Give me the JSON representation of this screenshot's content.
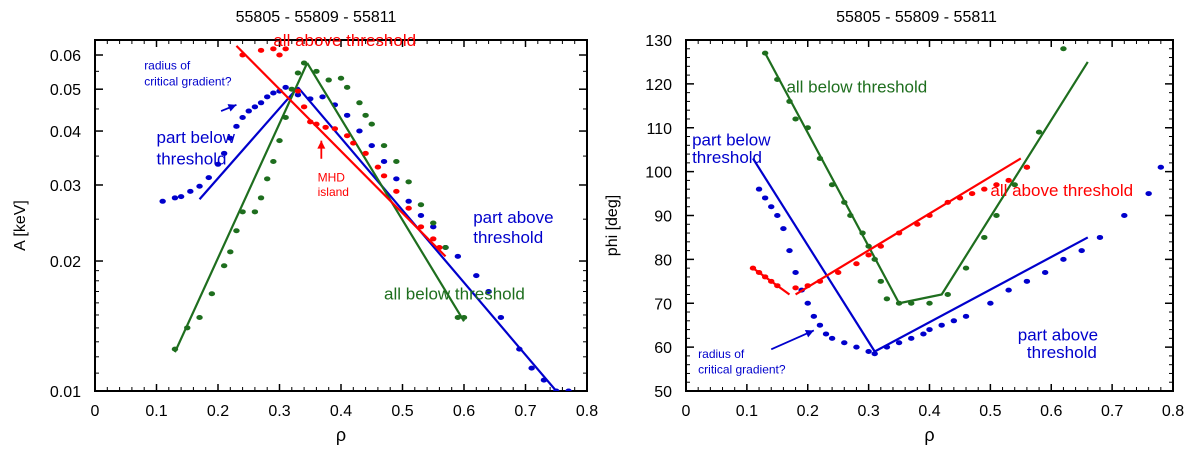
{
  "chart_data": [
    {
      "type": "scatter",
      "title": "55805 - 55809 - 55811",
      "xlabel": "ρ",
      "ylabel": "A [keV]",
      "xlim": [
        0,
        0.8
      ],
      "ylim": [
        0.01,
        0.065
      ],
      "y_scale": "log",
      "grid": false,
      "x_ticks": [
        "0",
        "0.1",
        "0.2",
        "0.3",
        "0.4",
        "0.5",
        "0.6",
        "0.7",
        "0.8"
      ],
      "x_tick_values": [
        0,
        0.1,
        0.2,
        0.3,
        0.4,
        0.5,
        0.6,
        0.7,
        0.8
      ],
      "y_ticks": [
        "0.01",
        "0.02",
        "0.03",
        "0.04",
        "0.05",
        "0.06"
      ],
      "y_tick_values": [
        0.01,
        0.02,
        0.03,
        0.04,
        0.05,
        0.06
      ],
      "series": [
        {
          "color": "#0000cc",
          "points": [
            [
              0.11,
              0.0275
            ],
            [
              0.13,
              0.028
            ],
            [
              0.14,
              0.0282
            ],
            [
              0.155,
              0.029
            ],
            [
              0.17,
              0.0298
            ],
            [
              0.185,
              0.0312
            ],
            [
              0.2,
              0.0335
            ],
            [
              0.21,
              0.0355
            ],
            [
              0.22,
              0.0385
            ],
            [
              0.23,
              0.041
            ],
            [
              0.24,
              0.043
            ],
            [
              0.25,
              0.0445
            ],
            [
              0.26,
              0.0455
            ],
            [
              0.27,
              0.0465
            ],
            [
              0.28,
              0.048
            ],
            [
              0.29,
              0.049
            ],
            [
              0.3,
              0.0495
            ],
            [
              0.31,
              0.0505
            ],
            [
              0.33,
              0.0485
            ],
            [
              0.35,
              0.0475
            ],
            [
              0.37,
              0.048
            ],
            [
              0.39,
              0.046
            ],
            [
              0.41,
              0.0435
            ],
            [
              0.43,
              0.04
            ],
            [
              0.45,
              0.037
            ],
            [
              0.47,
              0.034
            ],
            [
              0.49,
              0.031
            ],
            [
              0.51,
              0.0275
            ],
            [
              0.53,
              0.0255
            ],
            [
              0.55,
              0.024
            ],
            [
              0.57,
              0.0215
            ],
            [
              0.59,
              0.0205
            ],
            [
              0.62,
              0.0185
            ],
            [
              0.64,
              0.017
            ],
            [
              0.66,
              0.0148
            ],
            [
              0.69,
              0.0125
            ],
            [
              0.71,
              0.0113
            ],
            [
              0.73,
              0.0106
            ],
            [
              0.75,
              0.01
            ],
            [
              0.77,
              0.01
            ]
          ],
          "fits": [
            [
              [
                0.17,
                0.0278
              ],
              [
                0.33,
                0.0505
              ]
            ],
            [
              [
                0.33,
                0.0505
              ],
              [
                0.75,
                0.01
              ]
            ]
          ]
        },
        {
          "color": "#1e6e1e",
          "points": [
            [
              0.13,
              0.0125
            ],
            [
              0.15,
              0.014
            ],
            [
              0.17,
              0.0148
            ],
            [
              0.19,
              0.0168
            ],
            [
              0.21,
              0.0195
            ],
            [
              0.22,
              0.021
            ],
            [
              0.23,
              0.0235
            ],
            [
              0.24,
              0.026
            ],
            [
              0.26,
              0.026
            ],
            [
              0.27,
              0.028
            ],
            [
              0.28,
              0.031
            ],
            [
              0.29,
              0.034
            ],
            [
              0.3,
              0.038
            ],
            [
              0.31,
              0.043
            ],
            [
              0.32,
              0.05
            ],
            [
              0.33,
              0.0545
            ],
            [
              0.34,
              0.0575
            ],
            [
              0.36,
              0.055
            ],
            [
              0.38,
              0.0525
            ],
            [
              0.4,
              0.053
            ],
            [
              0.41,
              0.0505
            ],
            [
              0.43,
              0.0465
            ],
            [
              0.44,
              0.0435
            ],
            [
              0.45,
              0.0415
            ],
            [
              0.47,
              0.037
            ],
            [
              0.49,
              0.034
            ],
            [
              0.51,
              0.0305
            ],
            [
              0.53,
              0.027
            ],
            [
              0.55,
              0.0245
            ],
            [
              0.57,
              0.0215
            ],
            [
              0.59,
              0.0148
            ],
            [
              0.6,
              0.0148
            ]
          ],
          "fits": [
            [
              [
                0.13,
                0.0123
              ],
              [
                0.345,
                0.0575
              ]
            ],
            [
              [
                0.345,
                0.0575
              ],
              [
                0.6,
                0.0145
              ]
            ]
          ]
        },
        {
          "color": "#ff0000",
          "points": [
            [
              0.24,
              0.06
            ],
            [
              0.27,
              0.0615
            ],
            [
              0.29,
              0.062
            ],
            [
              0.3,
              0.06
            ],
            [
              0.31,
              0.062
            ],
            [
              0.33,
              0.0495
            ],
            [
              0.34,
              0.0455
            ],
            [
              0.35,
              0.042
            ],
            [
              0.36,
              0.0415
            ],
            [
              0.375,
              0.0408
            ],
            [
              0.39,
              0.0405
            ],
            [
              0.41,
              0.039
            ],
            [
              0.42,
              0.0375
            ],
            [
              0.44,
              0.0355
            ],
            [
              0.46,
              0.033
            ],
            [
              0.47,
              0.0315
            ],
            [
              0.49,
              0.029
            ],
            [
              0.51,
              0.0265
            ],
            [
              0.53,
              0.024
            ],
            [
              0.55,
              0.0225
            ],
            [
              0.56,
              0.0215
            ]
          ],
          "fits": [
            [
              [
                0.23,
                0.063
              ],
              [
                0.57,
                0.0205
              ]
            ]
          ]
        }
      ],
      "annotations": [
        {
          "text": "all above threshold",
          "color": "#ff0000",
          "x": 0.29,
          "y": 0.063
        },
        {
          "text": "radius of",
          "color": "#0000cc",
          "x": 0.08,
          "y": 0.0555
        },
        {
          "text": "critical gradient?",
          "color": "#0000cc",
          "x": 0.08,
          "y": 0.051
        },
        {
          "text": "part below",
          "color": "#0000cc",
          "x": 0.1,
          "y": 0.0375
        },
        {
          "text": "threshold",
          "color": "#0000cc",
          "x": 0.1,
          "y": 0.0335
        },
        {
          "text": "MHD",
          "color": "#ff0000",
          "x": 0.362,
          "y": 0.0306
        },
        {
          "text": "island",
          "color": "#ff0000",
          "x": 0.362,
          "y": 0.0283
        },
        {
          "text": "part above",
          "color": "#0000cc",
          "x": 0.615,
          "y": 0.0245
        },
        {
          "text": "threshold",
          "color": "#0000cc",
          "x": 0.615,
          "y": 0.022
        },
        {
          "text": "all below  threshold",
          "color": "#1e6e1e",
          "x": 0.47,
          "y": 0.0163
        }
      ],
      "arrows": [
        {
          "color": "#0000cc",
          "from": [
            0.205,
            0.0445
          ],
          "to": [
            0.23,
            0.046
          ]
        },
        {
          "color": "#ff0000",
          "from": [
            0.368,
            0.0345
          ],
          "to": [
            0.368,
            0.038
          ]
        }
      ]
    },
    {
      "type": "scatter",
      "title": "55805 - 55809 - 55811",
      "xlabel": "ρ",
      "ylabel": "phi [deg]",
      "xlim": [
        0,
        0.8
      ],
      "ylim": [
        50,
        130
      ],
      "y_scale": "linear",
      "grid": false,
      "x_ticks": [
        "0",
        "0.1",
        "0.2",
        "0.3",
        "0.4",
        "0.5",
        "0.6",
        "0.7",
        "0.8"
      ],
      "x_tick_values": [
        0,
        0.1,
        0.2,
        0.3,
        0.4,
        0.5,
        0.6,
        0.7,
        0.8
      ],
      "y_ticks": [
        "50",
        "60",
        "70",
        "80",
        "90",
        "100",
        "110",
        "120",
        "130"
      ],
      "y_tick_values": [
        50,
        60,
        70,
        80,
        90,
        100,
        110,
        120,
        130
      ],
      "series": [
        {
          "color": "#0000cc",
          "points": [
            [
              0.12,
              96
            ],
            [
              0.13,
              94
            ],
            [
              0.14,
              92
            ],
            [
              0.15,
              90
            ],
            [
              0.16,
              87
            ],
            [
              0.17,
              82
            ],
            [
              0.18,
              77
            ],
            [
              0.19,
              73
            ],
            [
              0.2,
              70
            ],
            [
              0.21,
              67
            ],
            [
              0.22,
              65
            ],
            [
              0.23,
              63
            ],
            [
              0.24,
              62
            ],
            [
              0.26,
              61
            ],
            [
              0.28,
              60
            ],
            [
              0.3,
              59
            ],
            [
              0.31,
              58.5
            ],
            [
              0.33,
              60
            ],
            [
              0.35,
              61
            ],
            [
              0.37,
              62
            ],
            [
              0.39,
              63
            ],
            [
              0.4,
              64
            ],
            [
              0.42,
              65
            ],
            [
              0.44,
              66
            ],
            [
              0.46,
              67
            ],
            [
              0.5,
              70
            ],
            [
              0.53,
              73
            ],
            [
              0.56,
              75
            ],
            [
              0.59,
              77
            ],
            [
              0.62,
              80
            ],
            [
              0.65,
              82
            ],
            [
              0.68,
              85
            ],
            [
              0.72,
              90
            ],
            [
              0.76,
              95
            ],
            [
              0.78,
              101
            ]
          ],
          "fits": [
            [
              [
                0.11,
                103
              ],
              [
                0.31,
                59
              ]
            ],
            [
              [
                0.31,
                59
              ],
              [
                0.66,
                85
              ]
            ]
          ]
        },
        {
          "color": "#1e6e1e",
          "points": [
            [
              0.13,
              127
            ],
            [
              0.15,
              121
            ],
            [
              0.17,
              116
            ],
            [
              0.18,
              112
            ],
            [
              0.2,
              110
            ],
            [
              0.22,
              103
            ],
            [
              0.24,
              97
            ],
            [
              0.26,
              93
            ],
            [
              0.27,
              90
            ],
            [
              0.29,
              86
            ],
            [
              0.3,
              83
            ],
            [
              0.31,
              80
            ],
            [
              0.32,
              75
            ],
            [
              0.33,
              71
            ],
            [
              0.35,
              70
            ],
            [
              0.37,
              70
            ],
            [
              0.4,
              70
            ],
            [
              0.43,
              72
            ],
            [
              0.46,
              78
            ],
            [
              0.49,
              85
            ],
            [
              0.51,
              90
            ],
            [
              0.54,
              97
            ],
            [
              0.56,
              101
            ],
            [
              0.58,
              109
            ],
            [
              0.62,
              128
            ]
          ],
          "fits": [
            [
              [
                0.13,
                127
              ],
              [
                0.35,
                70
              ]
            ],
            [
              [
                0.35,
                70
              ],
              [
                0.42,
                72
              ],
              [
                0.66,
                125
              ]
            ]
          ]
        },
        {
          "color": "#ff0000",
          "points": [
            [
              0.11,
              78
            ],
            [
              0.12,
              77
            ],
            [
              0.13,
              76
            ],
            [
              0.14,
              75
            ],
            [
              0.15,
              74
            ],
            [
              0.18,
              73.5
            ],
            [
              0.2,
              74
            ],
            [
              0.22,
              75
            ],
            [
              0.25,
              77
            ],
            [
              0.28,
              79
            ],
            [
              0.3,
              81
            ],
            [
              0.32,
              83
            ],
            [
              0.35,
              86
            ],
            [
              0.38,
              88
            ],
            [
              0.4,
              90
            ],
            [
              0.43,
              93
            ],
            [
              0.45,
              94
            ],
            [
              0.47,
              95
            ],
            [
              0.49,
              96
            ],
            [
              0.51,
              97
            ],
            [
              0.53,
              98
            ],
            [
              0.56,
              101
            ]
          ],
          "fits": [
            [
              [
                0.11,
                78
              ],
              [
                0.17,
                72
              ]
            ],
            [
              [
                0.18,
                72
              ],
              [
                0.55,
                103
              ]
            ]
          ]
        }
      ],
      "annotations": [
        {
          "text": "all below  threshold",
          "color": "#1e6e1e",
          "x": 0.165,
          "y": 118
        },
        {
          "text": "part below",
          "color": "#0000cc",
          "x": 0.01,
          "y": 106
        },
        {
          "text": "threshold",
          "color": "#0000cc",
          "x": 0.01,
          "y": 102
        },
        {
          "text": "all above threshold",
          "color": "#ff0000",
          "x": 0.5,
          "y": 94.5
        },
        {
          "text": "part above",
          "color": "#0000cc",
          "x": 0.545,
          "y": 61.5
        },
        {
          "text": "threshold",
          "color": "#0000cc",
          "x": 0.56,
          "y": 57.5
        },
        {
          "text": "radius of",
          "color": "#0000cc",
          "x": 0.02,
          "y": 57.5
        },
        {
          "text": "critical gradient?",
          "color": "#0000cc",
          "x": 0.02,
          "y": 54
        }
      ],
      "arrows": [
        {
          "color": "#0000cc",
          "from": [
            0.14,
            59.5
          ],
          "to": [
            0.21,
            63.8
          ]
        }
      ]
    }
  ]
}
